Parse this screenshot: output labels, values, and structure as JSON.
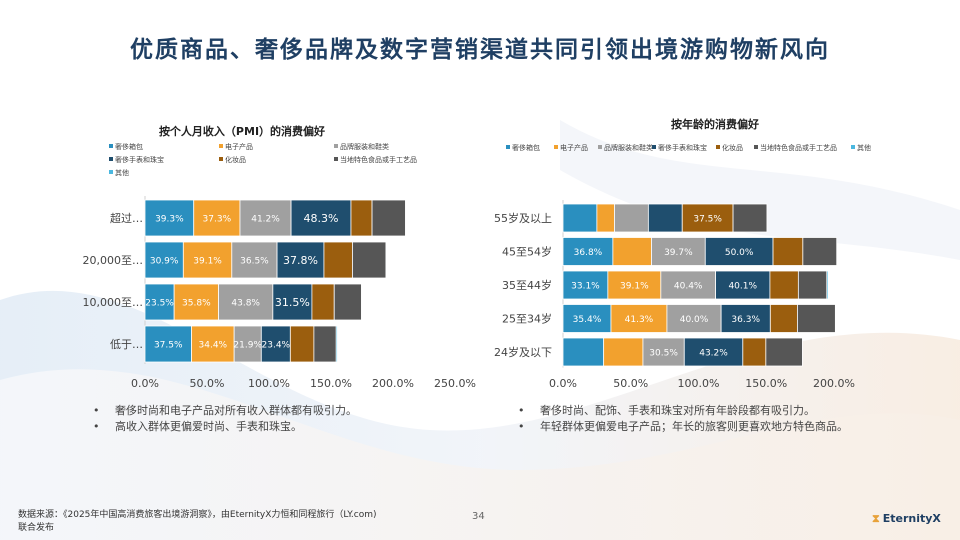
{
  "page": {
    "title": "优质商品、奢侈品牌及数字营销渠道共同引领出境游购物新风向",
    "source_line1": "数据来源：《2025年中国高消费旅客出境游洞察》，由EternityX力恒和同程旅行（LY.com)",
    "source_line2": "联合发布",
    "page_number": "34",
    "logo_text": "EternityX",
    "logo_mark": "⧗"
  },
  "colors": {
    "title": "#1f3f63",
    "series": [
      "#2a8fbf",
      "#f2a12e",
      "#a0a0a0",
      "#1f4e6e",
      "#9b5e0e",
      "#565656",
      "#4ab8e0"
    ]
  },
  "left_notes": [
    "奢侈时尚和电子产品对所有收入群体都有吸引力。",
    "高收入群体更偏爱时尚、手表和珠宝。"
  ],
  "right_notes": [
    "奢侈时尚、配饰、手表和珠宝对所有年龄段都有吸引力。",
    "年轻群体更偏爱电子产品；年长的旅客则更喜欢地方特色商品。"
  ],
  "chart_data": [
    {
      "type": "bar",
      "orientation": "horizontal",
      "stacked": true,
      "title": "按个人月收入（PMI）的消费偏好",
      "categories": [
        "超过…",
        "20,000至…",
        "10,000至…",
        "低于…"
      ],
      "xlim": [
        0,
        250
      ],
      "xticks": [
        "0.0%",
        "50.0%",
        "100.0%",
        "150.0%",
        "200.0%",
        "250.0%"
      ],
      "legend_position": "top",
      "series": [
        {
          "name": "奢侈箱包",
          "values": [
            39.3,
            30.9,
            23.5,
            37.5
          ],
          "labels": [
            "39.3%",
            "30.9%",
            "23.5%",
            "37.5%"
          ]
        },
        {
          "name": "电子产品",
          "values": [
            37.3,
            39.1,
            35.8,
            34.4
          ],
          "labels": [
            "37.3%",
            "39.1%",
            "35.8%",
            "34.4%"
          ]
        },
        {
          "name": "品牌服装和鞋类",
          "values": [
            41.2,
            36.5,
            43.8,
            21.9
          ],
          "labels": [
            "41.2%",
            "36.5%",
            "43.8%",
            "21.9%"
          ]
        },
        {
          "name": "奢侈手表和珠宝",
          "values": [
            48.3,
            37.8,
            31.5,
            23.4
          ],
          "labels": [
            "48.3%",
            "37.8%",
            "31.5%",
            "23.4%"
          ]
        },
        {
          "name": "化妆品",
          "values": [
            17,
            23,
            18,
            19
          ],
          "labels": [
            "",
            "",
            "",
            ""
          ]
        },
        {
          "name": "当地特色食品或手工艺品",
          "values": [
            27,
            27,
            22,
            18
          ],
          "labels": [
            "",
            "",
            "",
            ""
          ]
        },
        {
          "name": "其他",
          "values": [
            0.5,
            0.5,
            0.5,
            1
          ],
          "labels": [
            "",
            "",
            "",
            ""
          ]
        }
      ]
    },
    {
      "type": "bar",
      "orientation": "horizontal",
      "stacked": true,
      "title": "按年龄的消费偏好",
      "categories": [
        "55岁及以上",
        "45至54岁",
        "35至44岁",
        "25至34岁",
        "24岁及以下"
      ],
      "xlim": [
        0,
        200
      ],
      "xticks": [
        "0.0%",
        "50.0%",
        "100.0%",
        "150.0%",
        "200.0%"
      ],
      "legend_position": "top",
      "series": [
        {
          "name": "奢侈箱包",
          "values": [
            25,
            36.8,
            33.1,
            35.4,
            30
          ],
          "labels": [
            "",
            "36.8%",
            "33.1%",
            "35.4%",
            ""
          ]
        },
        {
          "name": "电子产品",
          "values": [
            13,
            28.5,
            39.1,
            41.3,
            29
          ],
          "labels": [
            "",
            "",
            "39.1%",
            "41.3%",
            ""
          ]
        },
        {
          "name": "品牌服装和鞋类",
          "values": [
            25,
            39.7,
            40.4,
            40.0,
            30.5
          ],
          "labels": [
            "",
            "39.7%",
            "40.4%",
            "40.0%",
            "30.5%"
          ]
        },
        {
          "name": "奢侈手表和珠宝",
          "values": [
            25,
            50.0,
            40.1,
            36.3,
            43.2
          ],
          "labels": [
            "",
            "50.0%",
            "40.1%",
            "36.3%",
            "43.2%"
          ]
        },
        {
          "name": "化妆品",
          "values": [
            37.5,
            22,
            21,
            20,
            17
          ],
          "labels": [
            "37.5%",
            "",
            "",
            "",
            ""
          ]
        },
        {
          "name": "当地特色食品或手工艺品",
          "values": [
            25,
            25,
            21,
            28,
            27
          ],
          "labels": [
            "",
            "",
            "",
            "",
            ""
          ]
        },
        {
          "name": "其他",
          "values": [
            0,
            0,
            1,
            0,
            0
          ],
          "labels": [
            "",
            "",
            "",
            "",
            ""
          ]
        }
      ]
    }
  ]
}
